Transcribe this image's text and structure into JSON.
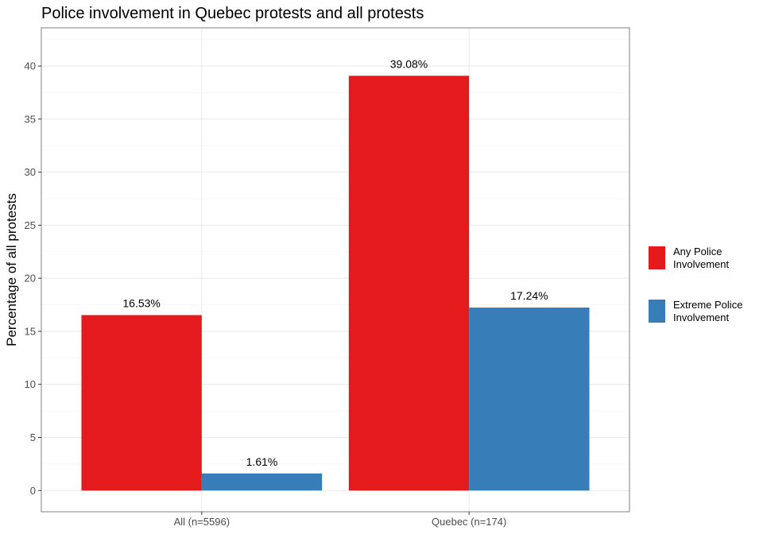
{
  "chart_data": {
    "type": "bar",
    "title": "Police involvement in Quebec protests and all protests",
    "xlabel": "",
    "ylabel": "Percentage of all protests",
    "categories": [
      "All (n=5596)",
      "Quebec (n=174)"
    ],
    "series": [
      {
        "name": "Any Police Involvement",
        "color": "#e41a1c",
        "values": [
          16.53,
          39.08
        ],
        "labels": [
          "16.53%",
          "39.08%"
        ]
      },
      {
        "name": "Extreme Police Involvement",
        "color": "#377eb8",
        "values": [
          1.61,
          17.24
        ],
        "labels": [
          "1.61%",
          "17.24%"
        ]
      }
    ],
    "ylim": [
      -2.0,
      43.6
    ],
    "yticks": [
      0,
      5,
      10,
      15,
      20,
      25,
      30,
      35,
      40
    ],
    "grid": true,
    "legend_position": "right"
  }
}
